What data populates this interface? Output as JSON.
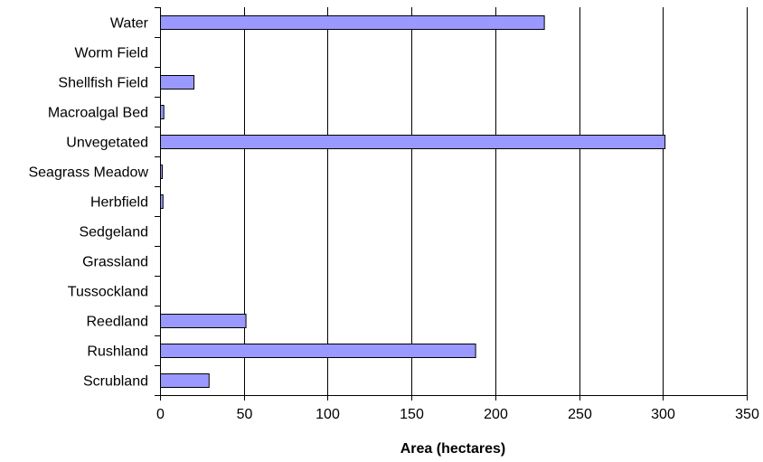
{
  "chart_data": {
    "type": "bar",
    "orientation": "horizontal",
    "categories": [
      "Water",
      "Worm Field",
      "Shellfish Field",
      "Macroalgal Bed",
      "Unvegetated",
      "Seagrass Meadow",
      "Herbfield",
      "Sedgeland",
      "Grassland",
      "Tussockland",
      "Reedland",
      "Rushland",
      "Scrubland"
    ],
    "values": [
      229,
      0,
      20,
      2,
      301,
      1,
      1.5,
      0,
      0,
      0,
      51,
      188,
      29
    ],
    "xlabel": "Area (hectares)",
    "ylabel": "",
    "title": "",
    "xlim": [
      0,
      350
    ],
    "xticks": [
      0,
      50,
      100,
      150,
      200,
      250,
      300,
      350
    ],
    "xtick_labels": [
      "0",
      "50",
      "100",
      "150",
      "200",
      "250",
      "300",
      "350"
    ],
    "grid": "vertical major gridlines",
    "legend": "none",
    "bar_color": "#9999ff"
  }
}
